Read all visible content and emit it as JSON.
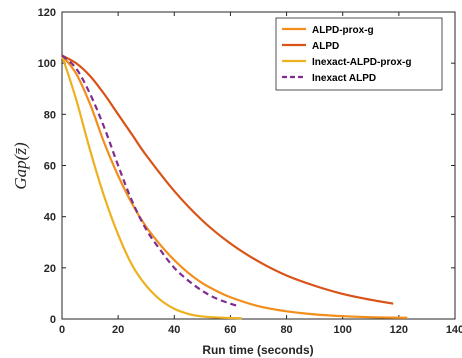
{
  "chart_data": {
    "type": "line",
    "title": "",
    "xlabel": "Run time (seconds)",
    "ylabel": "Gap(z̄)",
    "xlim": [
      0,
      140
    ],
    "ylim": [
      0,
      120
    ],
    "xticks": [
      "0",
      "20",
      "40",
      "60",
      "80",
      "100",
      "120",
      "140"
    ],
    "yticks": [
      "0",
      "20",
      "40",
      "60",
      "80",
      "100",
      "120"
    ],
    "grid": false,
    "legend_position": "top-right",
    "series": [
      {
        "name": "ALPD-prox-g",
        "color": "#F28E1C",
        "dash": "solid",
        "x": [
          0,
          5,
          10,
          15,
          20,
          25,
          30,
          35,
          40,
          45,
          50,
          55,
          60,
          70,
          80,
          90,
          100,
          110,
          120,
          123
        ],
        "y": [
          103,
          96,
          84,
          69,
          56,
          45,
          36,
          29,
          23,
          18,
          14,
          11,
          8.5,
          5,
          3,
          1.8,
          1.1,
          0.7,
          0.5,
          0.5
        ]
      },
      {
        "name": "ALPD",
        "color": "#D95319",
        "dash": "solid",
        "x": [
          0,
          5,
          10,
          15,
          20,
          25,
          30,
          40,
          50,
          60,
          70,
          80,
          90,
          100,
          110,
          118
        ],
        "y": [
          103,
          100,
          95,
          88,
          80,
          72,
          64,
          50,
          38.5,
          29.5,
          22.5,
          17,
          13,
          9.8,
          7.5,
          6
        ]
      },
      {
        "name": "Inexact-ALPD-prox-g",
        "color": "#EDB120",
        "dash": "solid",
        "x": [
          0,
          5,
          10,
          15,
          20,
          25,
          30,
          35,
          40,
          45,
          50,
          55,
          60,
          64
        ],
        "y": [
          103,
          86,
          66,
          48,
          33,
          21,
          13,
          7.5,
          4,
          2,
          1,
          0.6,
          0.4,
          0.3
        ]
      },
      {
        "name": "Inexact ALPD",
        "color": "#7E2F8E",
        "dash": "dashed",
        "x": [
          0,
          5,
          10,
          15,
          20,
          25,
          30,
          35,
          40,
          45,
          50,
          55,
          60,
          63
        ],
        "y": [
          103,
          98,
          88,
          75,
          60,
          46,
          35,
          27,
          20,
          15,
          11,
          8,
          6,
          5
        ]
      }
    ]
  }
}
